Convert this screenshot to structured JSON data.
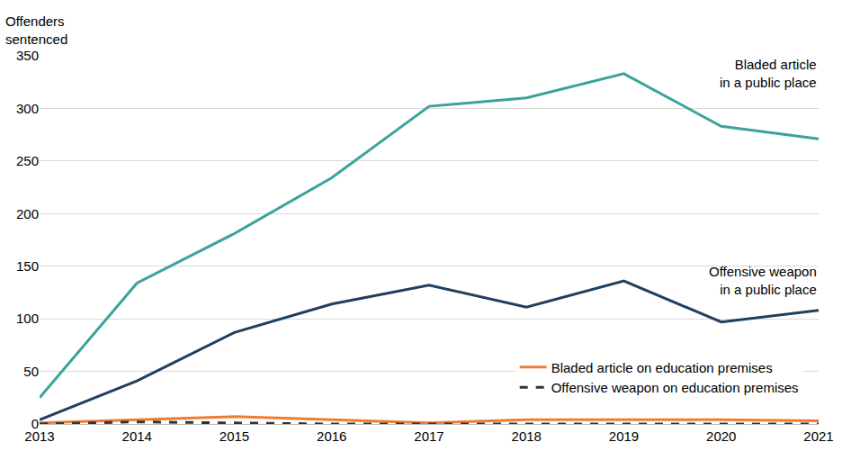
{
  "chart_data": {
    "type": "line",
    "y_label": "Offenders sentenced",
    "x": [
      2013,
      2014,
      2015,
      2016,
      2017,
      2018,
      2019,
      2020,
      2021
    ],
    "xlim": [
      2013,
      2021
    ],
    "xticks": [
      2013,
      2014,
      2015,
      2016,
      2017,
      2018,
      2019,
      2020,
      2021
    ],
    "ylim": [
      0,
      350
    ],
    "yticks": [
      0,
      50,
      100,
      150,
      200,
      250,
      300,
      350
    ],
    "grid": true,
    "legend": "bottom right",
    "series": [
      {
        "name": "Bladed article in a public place",
        "color": "#3aa39a",
        "line_style": "solid",
        "values": [
          25,
          134,
          181,
          234,
          302,
          310,
          333,
          283,
          271
        ]
      },
      {
        "name": "Offensive weapon in a public place",
        "color": "#1f3f5f",
        "line_style": "solid",
        "values": [
          4,
          41,
          87,
          114,
          132,
          111,
          136,
          97,
          108
        ]
      },
      {
        "name": "Bladed article on education premises",
        "color": "#ed7d31",
        "line_style": "solid",
        "values": [
          1,
          4,
          7,
          4,
          1,
          4,
          4,
          4,
          3
        ]
      },
      {
        "name": "Offensive weapon on education premises",
        "color": "#333333",
        "line_style": "dash",
        "values": [
          0,
          2,
          1,
          0,
          0,
          0,
          0,
          0,
          0
        ]
      }
    ]
  }
}
